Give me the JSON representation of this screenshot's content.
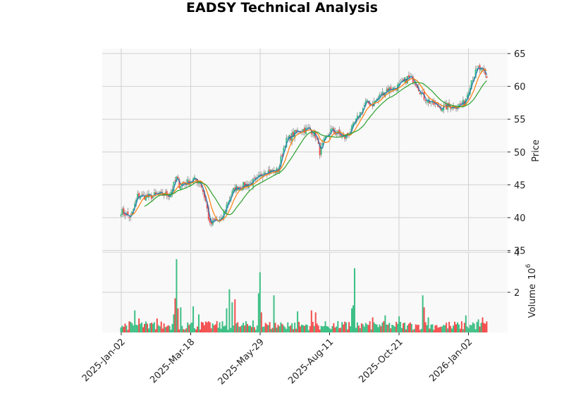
{
  "title": "EADSY Technical Analysis",
  "colors": {
    "up": "#3dbf85",
    "down": "#f44e4e",
    "wick": "#8a8a8a",
    "panel_bg": "#f9f9f9",
    "grid": "#d0d0d0",
    "ma_short": "#1f77b4",
    "ma_mid": "#ff7f0e",
    "ma_long": "#2ca02c"
  },
  "chart_data": [
    {
      "type": "candlestick",
      "title": "EADSY Technical Analysis",
      "ylabel": "Price",
      "ylim": [
        35,
        65.8
      ],
      "yticks": [
        35,
        40,
        45,
        50,
        55,
        60,
        65
      ],
      "xticks": [
        "2025-Jan-02",
        "2025-Mar-18",
        "2025-May-29",
        "2025-Aug-11",
        "2025-Oct-21",
        "2026-Jan-02"
      ],
      "grid": true,
      "moving_averages": [
        "short (blue)",
        "medium (orange)",
        "long (green)"
      ],
      "close_keypoints": [
        [
          0,
          41.0
        ],
        [
          7,
          40.0
        ],
        [
          12,
          43.3
        ],
        [
          20,
          43.2
        ],
        [
          27,
          43.5
        ],
        [
          35,
          43.5
        ],
        [
          40,
          46.0
        ],
        [
          42,
          45.0
        ],
        [
          47,
          45.3
        ],
        [
          52,
          45.8
        ],
        [
          57,
          45.5
        ],
        [
          61,
          42.5
        ],
        [
          64,
          38.8
        ],
        [
          67,
          39.5
        ],
        [
          72,
          39.5
        ],
        [
          77,
          42.5
        ],
        [
          82,
          44.5
        ],
        [
          90,
          45.0
        ],
        [
          98,
          45.7
        ],
        [
          103,
          47.2
        ],
        [
          108,
          47.0
        ],
        [
          113,
          47.2
        ],
        [
          118,
          51.5
        ],
        [
          123,
          52.5
        ],
        [
          128,
          53.3
        ],
        [
          136,
          53.5
        ],
        [
          140,
          52.5
        ],
        [
          143,
          50.0
        ],
        [
          146,
          51.5
        ],
        [
          151,
          53.3
        ],
        [
          156,
          52.8
        ],
        [
          161,
          52.2
        ],
        [
          166,
          53.5
        ],
        [
          171,
          55.5
        ],
        [
          176,
          57.5
        ],
        [
          181,
          57.3
        ],
        [
          186,
          58.5
        ],
        [
          191,
          59.5
        ],
        [
          196,
          59.7
        ],
        [
          201,
          60.2
        ],
        [
          206,
          61.3
        ],
        [
          211,
          61.0
        ],
        [
          217,
          58.5
        ],
        [
          222,
          57.7
        ],
        [
          227,
          57.0
        ],
        [
          232,
          56.8
        ],
        [
          237,
          57.0
        ],
        [
          242,
          57.0
        ],
        [
          247,
          57.5
        ],
        [
          252,
          61.0
        ],
        [
          257,
          62.8
        ],
        [
          261,
          62.0
        ],
        [
          263,
          61.2
        ]
      ],
      "n_bars": 264
    },
    {
      "type": "bar",
      "ylabel": "Volume  10^6",
      "ylim": [
        0,
        4
      ],
      "yticks": [
        2,
        4
      ],
      "volume_keypoints_millions": [
        [
          0,
          0.25
        ],
        [
          10,
          1.1
        ],
        [
          13,
          0.7
        ],
        [
          20,
          0.2
        ],
        [
          26,
          0.7
        ],
        [
          33,
          0.3
        ],
        [
          38,
          0.9
        ],
        [
          39,
          1.7
        ],
        [
          40,
          3.65
        ],
        [
          41,
          1.2
        ],
        [
          43,
          1.25
        ],
        [
          48,
          0.5
        ],
        [
          52,
          1.3
        ],
        [
          56,
          0.9
        ],
        [
          62,
          0.5
        ],
        [
          68,
          0.4
        ],
        [
          76,
          1.2
        ],
        [
          78,
          2.15
        ],
        [
          80,
          1.5
        ],
        [
          82,
          1.65
        ],
        [
          86,
          0.3
        ],
        [
          95,
          0.6
        ],
        [
          99,
          1.95
        ],
        [
          100,
          3.0
        ],
        [
          101,
          1.0
        ],
        [
          105,
          0.4
        ],
        [
          110,
          1.85
        ],
        [
          115,
          0.5
        ],
        [
          120,
          0.5
        ],
        [
          127,
          1.05
        ],
        [
          133,
          0.4
        ],
        [
          137,
          1.1
        ],
        [
          140,
          1.0
        ],
        [
          145,
          0.3
        ],
        [
          155,
          0.3
        ],
        [
          163,
          0.15
        ],
        [
          166,
          1.2
        ],
        [
          167,
          1.35
        ],
        [
          168,
          3.2
        ],
        [
          170,
          0.5
        ],
        [
          177,
          0.4
        ],
        [
          181,
          0.75
        ],
        [
          186,
          0.4
        ],
        [
          190,
          0.85
        ],
        [
          196,
          0.35
        ],
        [
          200,
          0.8
        ],
        [
          206,
          0.35
        ],
        [
          212,
          0.4
        ],
        [
          217,
          1.85
        ],
        [
          218,
          1.25
        ],
        [
          221,
          0.75
        ],
        [
          226,
          0.35
        ],
        [
          231,
          0.3
        ],
        [
          238,
          0.2
        ],
        [
          243,
          0.4
        ],
        [
          248,
          0.85
        ],
        [
          253,
          0.5
        ],
        [
          257,
          0.65
        ],
        [
          260,
          0.75
        ],
        [
          263,
          0.55
        ]
      ]
    }
  ],
  "axes": {
    "price_label": "Price",
    "volume_label": "Volume",
    "volume_exponent": "10",
    "volume_exponent_power": "6",
    "price_tick_labels": [
      "65",
      "60",
      "55",
      "50",
      "45",
      "40",
      "35"
    ],
    "volume_tick_labels": [
      "4",
      "2"
    ],
    "x_tick_labels": [
      "2025-Jan-02",
      "2025-Mar-18",
      "2025-May-29",
      "2025-Aug-11",
      "2025-Oct-21",
      "2026-Jan-02"
    ]
  }
}
